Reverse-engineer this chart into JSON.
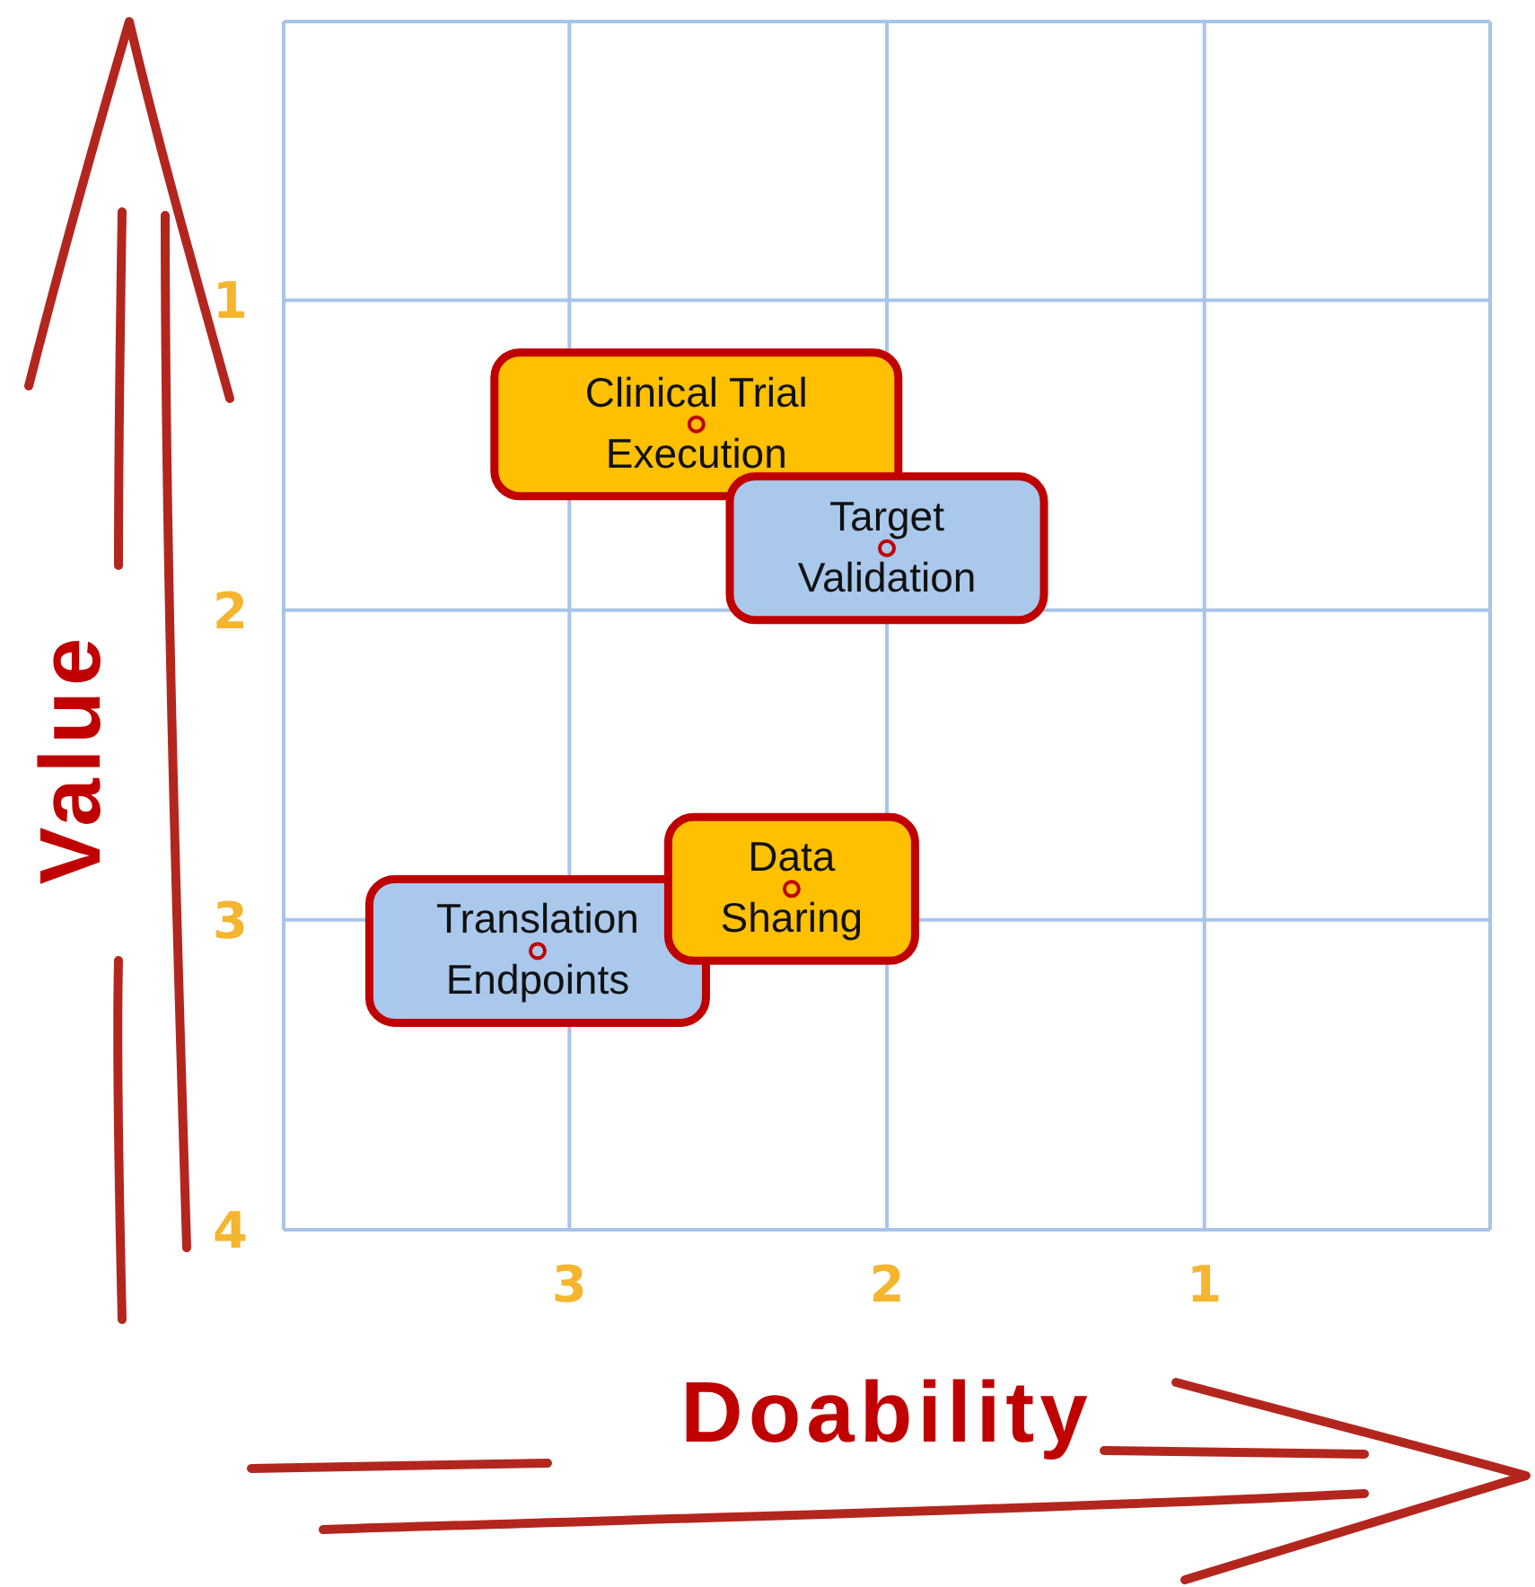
{
  "chart_data": {
    "type": "scatter",
    "xlabel": "Doability",
    "ylabel": "Value",
    "xlim": [
      3.9,
      0.1
    ],
    "marker": "circle",
    "xticks": [
      3,
      2,
      1
    ],
    "ylim": [
      4,
      0.1
    ],
    "yticks": [
      1,
      2,
      3,
      4
    ],
    "grid": true,
    "series": [
      {
        "x": [
          2.6,
          2.0,
          3.1,
          2.3
        ],
        "values": [
          1.4,
          1.8,
          3.1,
          2.9
        ],
        "colors": [
          "#ffc000",
          "#a9c8ec",
          "#a9c8ec",
          "#ffc000"
        ],
        "value_labels": [
          "Clinical Trial Execution",
          "Target Validation",
          "Translation Endpoints",
          "Data Sharing"
        ]
      }
    ]
  }
}
